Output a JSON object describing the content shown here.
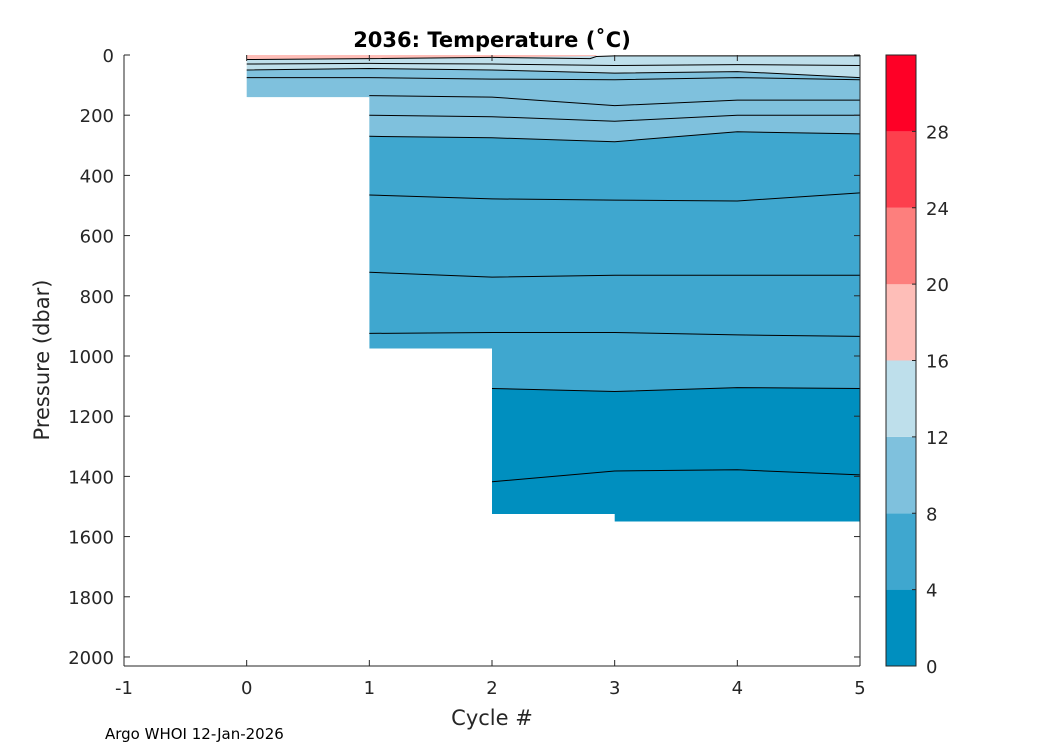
{
  "chart_data": {
    "type": "contour",
    "title": "2036:  Temperature (˚C)",
    "xlabel": "Cycle #",
    "ylabel": "Pressure (dbar)",
    "xlim": [
      -1,
      5
    ],
    "ylim": [
      2030,
      0
    ],
    "y_reversed": true,
    "xticks": [
      "-1",
      "0",
      "1",
      "2",
      "3",
      "4",
      "5"
    ],
    "xtick_values": [
      -1,
      0,
      1,
      2,
      3,
      4,
      5
    ],
    "yticks": [
      "0",
      "200",
      "400",
      "600",
      "800",
      "1000",
      "1200",
      "1400",
      "1600",
      "1800",
      "2000"
    ],
    "ytick_values": [
      0,
      200,
      400,
      600,
      800,
      1000,
      1200,
      1400,
      1600,
      1800,
      2000
    ],
    "colorbar": {
      "levels": [
        0,
        4,
        8,
        12,
        16,
        20,
        24,
        28,
        32
      ],
      "tick_labels": [
        "0",
        "4",
        "8",
        "12",
        "16",
        "20",
        "24",
        "28"
      ],
      "tick_values": [
        0,
        4,
        8,
        12,
        16,
        20,
        24,
        28
      ],
      "colors": [
        "#008FBF",
        "#3FA7CF",
        "#7FC1DD",
        "#BEDFEB",
        "#FEBEB8",
        "#FD7F7D",
        "#FD3F4D",
        "#FE0026"
      ]
    },
    "cycles": [
      0,
      1,
      2,
      3,
      4,
      5
    ],
    "max_pressure": [
      140,
      975,
      1525,
      1550,
      1550,
      1550
    ],
    "isotherms": [
      {
        "temp": 16,
        "x": [
          0,
          1,
          2,
          2.8,
          2.85,
          3,
          4,
          5
        ],
        "p": [
          15,
          12,
          8,
          12,
          5,
          3,
          3,
          3
        ]
      },
      {
        "temp": 14,
        "x": [
          0,
          1,
          2,
          3,
          4,
          5
        ],
        "p": [
          30,
          28,
          30,
          35,
          32,
          35
        ]
      },
      {
        "temp": 12,
        "x": [
          0,
          1,
          2,
          3,
          4,
          5
        ],
        "p": [
          50,
          45,
          50,
          60,
          55,
          75
        ]
      },
      {
        "temp": 11,
        "x": [
          0,
          1,
          2,
          3,
          4,
          5
        ],
        "p": [
          75,
          75,
          80,
          82,
          75,
          82
        ]
      },
      {
        "temp": 10,
        "x": [
          1,
          2,
          3,
          4,
          5
        ],
        "p": [
          135,
          140,
          168,
          150,
          150
        ]
      },
      {
        "temp": 9,
        "x": [
          1,
          2,
          3,
          4,
          5
        ],
        "p": [
          200,
          205,
          220,
          200,
          200
        ]
      },
      {
        "temp": 8,
        "x": [
          1,
          2,
          3,
          4,
          5
        ],
        "p": [
          270,
          275,
          288,
          255,
          262
        ]
      },
      {
        "temp": 7,
        "x": [
          1,
          2,
          3,
          4,
          5
        ],
        "p": [
          465,
          478,
          482,
          485,
          458
        ]
      },
      {
        "temp": 6,
        "x": [
          1,
          2,
          3,
          4,
          5
        ],
        "p": [
          722,
          738,
          732,
          732,
          732
        ]
      },
      {
        "temp": 5,
        "x": [
          1,
          2,
          3,
          4,
          5
        ],
        "p": [
          925,
          922,
          922,
          930,
          935
        ]
      },
      {
        "temp": 4,
        "x": [
          2,
          3,
          4,
          5
        ],
        "p": [
          1108,
          1118,
          1105,
          1108
        ]
      },
      {
        "temp": 3.5,
        "x": [
          2,
          3,
          4,
          5
        ],
        "p": [
          1418,
          1382,
          1378,
          1395
        ]
      }
    ],
    "bands": [
      {
        "temp_range": [
          16,
          20
        ],
        "x": [
          0,
          1,
          2,
          2.8,
          2.85
        ],
        "top": [
          0,
          0,
          0,
          0,
          0
        ],
        "bottom": [
          15,
          12,
          8,
          12,
          5
        ]
      },
      {
        "temp_range": [
          12,
          16
        ],
        "x": [
          0,
          1,
          2,
          3,
          4,
          5
        ],
        "top": [
          15,
          12,
          8,
          3,
          3,
          3
        ],
        "bottom": [
          50,
          45,
          50,
          60,
          55,
          75
        ]
      },
      {
        "temp_range": [
          8,
          12
        ],
        "x": [
          0,
          1,
          2,
          3,
          4,
          5
        ],
        "top": [
          50,
          45,
          50,
          60,
          55,
          75
        ],
        "bottom": [
          140,
          270,
          275,
          288,
          255,
          262
        ]
      },
      {
        "temp_range": [
          4,
          8
        ],
        "x": [
          1,
          2,
          3,
          4,
          5
        ],
        "top": [
          270,
          275,
          288,
          255,
          262
        ],
        "bottom": [
          975,
          1108,
          1118,
          1105,
          1108
        ]
      },
      {
        "temp_range": [
          0,
          4
        ],
        "x": [
          2,
          3,
          4,
          5
        ],
        "top": [
          1108,
          1118,
          1105,
          1108
        ],
        "bottom": [
          1525,
          1550,
          1550,
          1550
        ]
      }
    ]
  },
  "footer": "Argo WHOI 12-Jan-2026"
}
